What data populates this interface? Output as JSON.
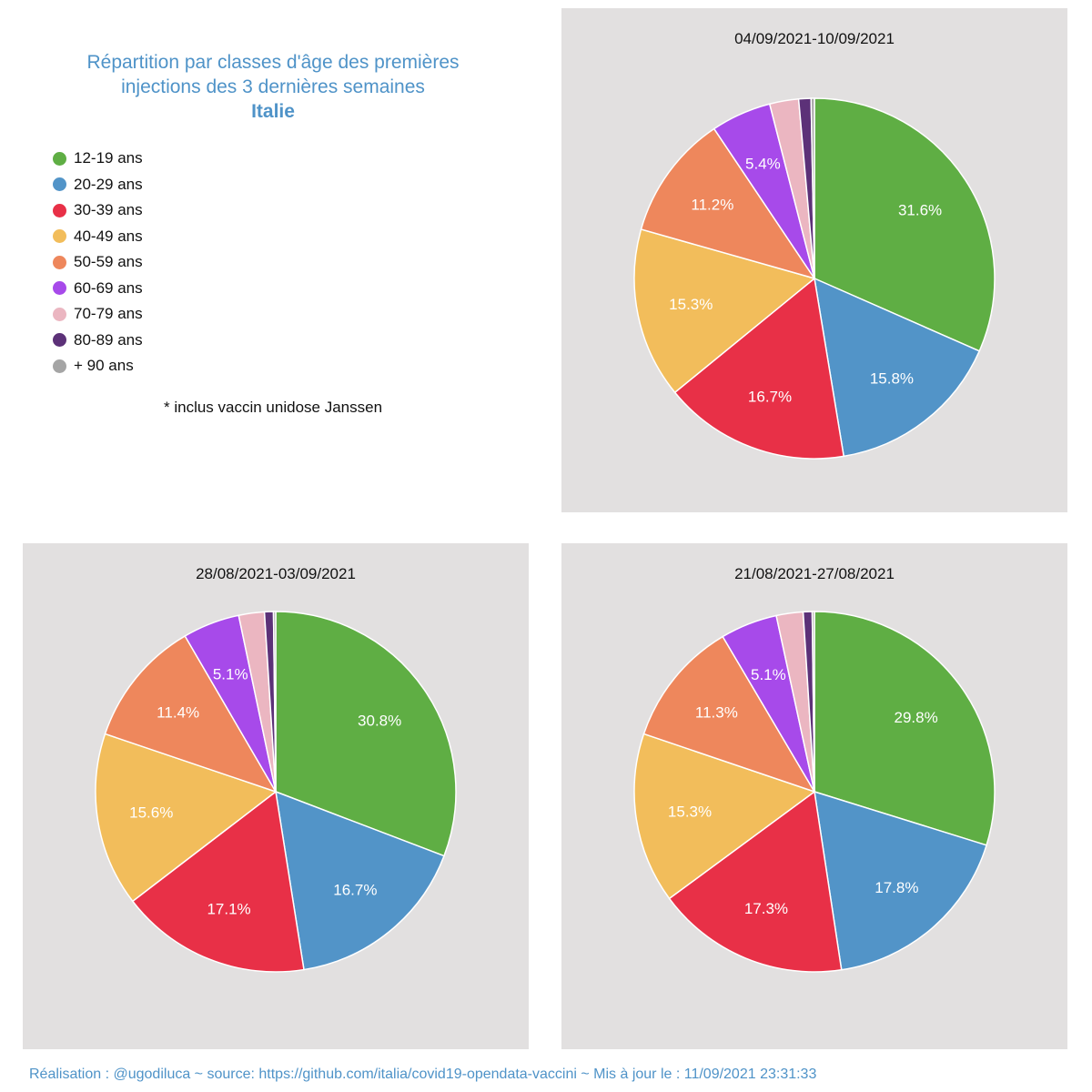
{
  "title": {
    "line1": "Répartition par classes d'âge des premières",
    "line2": "injections des 3 dernières semaines",
    "country": "Italie"
  },
  "legend": [
    {
      "label": "12-19 ans",
      "color": "#5fae44"
    },
    {
      "label": "20-29 ans",
      "color": "#5294c8"
    },
    {
      "label": "30-39 ans",
      "color": "#e83047"
    },
    {
      "label": "40-49 ans",
      "color": "#f2bd5b"
    },
    {
      "label": "50-59 ans",
      "color": "#ee875c"
    },
    {
      "label": "60-69 ans",
      "color": "#a74aea"
    },
    {
      "label": "70-79 ans",
      "color": "#ebb6c1"
    },
    {
      "label": "80-89 ans",
      "color": "#5c3178"
    },
    {
      "label": "+ 90 ans",
      "color": "#a5a5a5"
    }
  ],
  "note": "* inclus vaccin unidose Janssen",
  "chart_data": [
    {
      "type": "pie",
      "title": "04/09/2021-10/09/2021",
      "categories": [
        "12-19 ans",
        "20-29 ans",
        "30-39 ans",
        "40-49 ans",
        "50-59 ans",
        "60-69 ans",
        "70-79 ans",
        "80-89 ans",
        "+ 90 ans"
      ],
      "values": [
        31.6,
        15.8,
        16.7,
        15.3,
        11.2,
        5.4,
        2.6,
        1.1,
        0.3
      ],
      "labels": [
        "31.6%",
        "15.8%",
        "16.7%",
        "15.3%",
        "11.2%",
        "5.4%",
        "",
        "",
        ""
      ]
    },
    {
      "type": "pie",
      "title": "28/08/2021-03/09/2021",
      "categories": [
        "12-19 ans",
        "20-29 ans",
        "30-39 ans",
        "40-49 ans",
        "50-59 ans",
        "60-69 ans",
        "70-79 ans",
        "80-89 ans",
        "+ 90 ans"
      ],
      "values": [
        30.8,
        16.7,
        17.1,
        15.6,
        11.4,
        5.1,
        2.3,
        0.8,
        0.2
      ],
      "labels": [
        "30.8%",
        "16.7%",
        "17.1%",
        "15.6%",
        "11.4%",
        "5.1%",
        "",
        "",
        ""
      ]
    },
    {
      "type": "pie",
      "title": "21/08/2021-27/08/2021",
      "categories": [
        "12-19 ans",
        "20-29 ans",
        "30-39 ans",
        "40-49 ans",
        "50-59 ans",
        "60-69 ans",
        "70-79 ans",
        "80-89 ans",
        "+ 90 ans"
      ],
      "values": [
        29.8,
        17.8,
        17.3,
        15.3,
        11.3,
        5.1,
        2.4,
        0.8,
        0.2
      ],
      "labels": [
        "29.8%",
        "17.8%",
        "17.3%",
        "15.3%",
        "11.3%",
        "5.1%",
        "",
        "",
        ""
      ]
    }
  ],
  "footer": "Réalisation : @ugodiluca ~ source: https://github.com/italia/covid19-opendata-vaccini ~ Mis à jour le : 11/09/2021 23:31:33"
}
